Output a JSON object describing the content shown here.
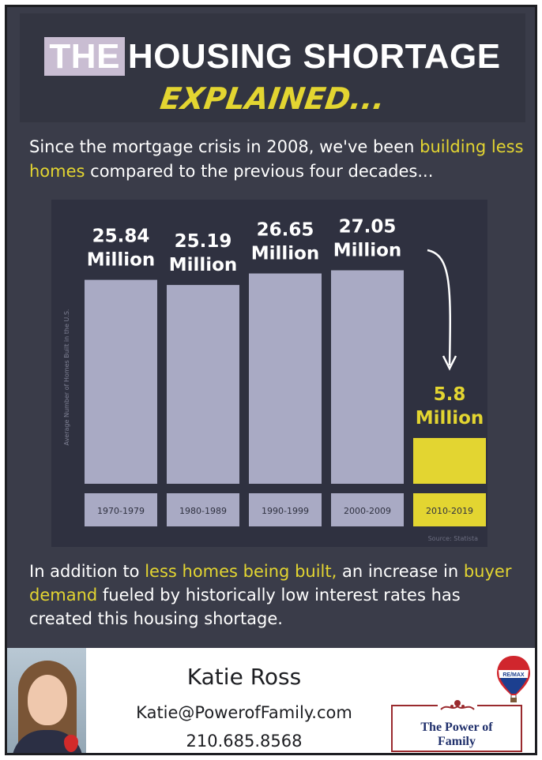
{
  "title": {
    "highlight": "THE",
    "main": "HOUSING SHORTAGE",
    "sub": "EXPLAINED..."
  },
  "intro": {
    "part1": "Since the mortgage crisis in 2008, we've been ",
    "highlight": "building less homes",
    "part2": " compared to the previous four decades..."
  },
  "chart_data": {
    "type": "bar",
    "categories": [
      "1970-1979",
      "1980-1989",
      "1990-1999",
      "2000-2009",
      "2010-2019"
    ],
    "values": [
      25.84,
      25.19,
      26.65,
      27.05,
      5.8
    ],
    "value_labels": [
      [
        "25.84",
        "Million"
      ],
      [
        "25.19",
        "Million"
      ],
      [
        "26.65",
        "Million"
      ],
      [
        "27.05",
        "Million"
      ],
      [
        "5.8",
        "Million"
      ]
    ],
    "units": "Million",
    "ylabel": "Average Number of Homes Built in the U.S.",
    "xlabel": "",
    "source": "Source: Statista",
    "ylim": [
      0,
      33
    ],
    "highlight_index": 4,
    "colors": {
      "bar": "#a9aac4",
      "highlight": "#e3d531",
      "label": "#ffffff",
      "highlight_label": "#e3d531"
    }
  },
  "outro": {
    "part1": "In addition to ",
    "highlight1": "less homes being built,",
    "part2": " an increase in ",
    "highlight2": "buyer demand",
    "part3": " fueled by historically low interest rates has created this housing shortage."
  },
  "footer": {
    "name": "Katie Ross",
    "email": "Katie@PowerofFamily.com",
    "phone": "210.685.8568",
    "logo_line1": "The Power of",
    "logo_line2": "Family",
    "balloon_text": "RE/MAX"
  },
  "colors": {
    "background": "#3a3c49",
    "accent": "#e3d531",
    "title_band": "#333541"
  },
  "icons": {
    "arrow": "curved-down-arrow-icon",
    "balloon": "hot-air-balloon-icon",
    "ornament": "ornament-icon"
  }
}
